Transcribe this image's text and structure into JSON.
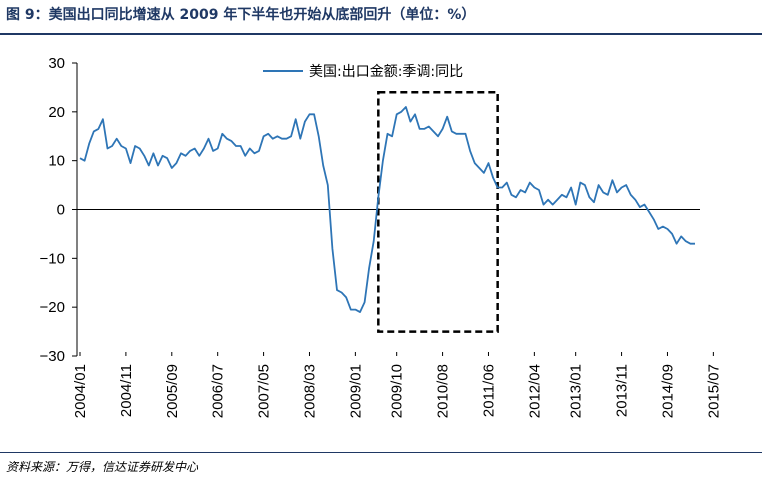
{
  "figure": {
    "title": "图 9：美国出口同比增速从 2009 年下半年也开始从底部回升（单位：%）",
    "source": "资料来源：万得，信达证券研发中心"
  },
  "colors": {
    "series": "#2e75b6",
    "frame": "#000000",
    "title": "#1f3864",
    "highlight_box": "#000000"
  },
  "chart_data": {
    "type": "line",
    "title": "",
    "xlabel": "",
    "ylabel": "",
    "ylim": [
      -30,
      30
    ],
    "yticks": [
      30,
      20,
      10,
      0,
      -10,
      -20,
      -30
    ],
    "ytick_labels": [
      "30",
      "20",
      "10",
      "0",
      "−10",
      "−20",
      "−30"
    ],
    "xticks": [
      "2004/01",
      "2004/11",
      "2005/09",
      "2006/07",
      "2007/05",
      "2008/03",
      "2009/01",
      "2009/10",
      "2010/08",
      "2011/06",
      "2012/04",
      "2013/01",
      "2013/11",
      "2014/09",
      "2015/07"
    ],
    "grid": false,
    "legend": {
      "position": "top-center",
      "entries": [
        "美国:出口金额:季调:同比"
      ]
    },
    "series": [
      {
        "name": "美国:出口金额:季调:同比",
        "x_start": "2004/01",
        "frequency": "monthly",
        "values": [
          10.5,
          10,
          13.5,
          16,
          16.5,
          18.5,
          12.5,
          13,
          14.5,
          13,
          12.5,
          9.5,
          13,
          12.5,
          11,
          9,
          11.5,
          9,
          11,
          10.5,
          8.5,
          9.5,
          11.5,
          11,
          12,
          12.5,
          11,
          12.5,
          14.5,
          12,
          12.5,
          15.5,
          14.5,
          14,
          13,
          13,
          11,
          12.5,
          11.5,
          12,
          15,
          15.5,
          14.5,
          15,
          14.5,
          14.5,
          15,
          18.5,
          14.5,
          18,
          19.5,
          19.5,
          15,
          9,
          5,
          -8,
          -16.5,
          -17,
          -18,
          -20.5,
          -20.5,
          -21,
          -19,
          -12,
          -6.5,
          2.5,
          10,
          15.5,
          15,
          19.5,
          20,
          21,
          18,
          19.5,
          16.5,
          16.5,
          17,
          16,
          15,
          16.5,
          19,
          16,
          15.5,
          15.5,
          15.5,
          12,
          9.5,
          8.5,
          7.5,
          9.5,
          6.5,
          4.5,
          4.5,
          5.5,
          3,
          2.5,
          4,
          3.5,
          5.5,
          4.5,
          4,
          1,
          2,
          1,
          2,
          3,
          2.5,
          4.5,
          1,
          5.5,
          5,
          2.5,
          1.5,
          5,
          3.5,
          3,
          6,
          3.5,
          4.5,
          5,
          3,
          2,
          0.5,
          1,
          -0.5,
          -2,
          -4,
          -3.5,
          -4,
          -5,
          -7,
          -5.5,
          -6.5,
          -7,
          -7
        ]
      }
    ],
    "annotations": [
      {
        "type": "dashed-box",
        "x_from": "2009/06",
        "x_to": "2011/08",
        "y_from": -25,
        "y_to": 24
      }
    ]
  }
}
